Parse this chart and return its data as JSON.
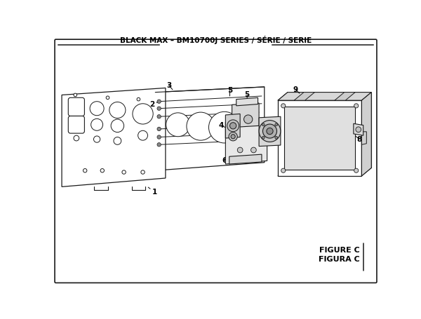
{
  "title": "BLACK MAX – BM10700J SERIES / SÉRIE / SERIE",
  "figure_label": "FIGURE C",
  "figura_label": "FIGURA C",
  "bg_color": "#ffffff",
  "line_color": "#1a1a1a",
  "figsize": [
    6.0,
    4.55
  ],
  "dpi": 100
}
